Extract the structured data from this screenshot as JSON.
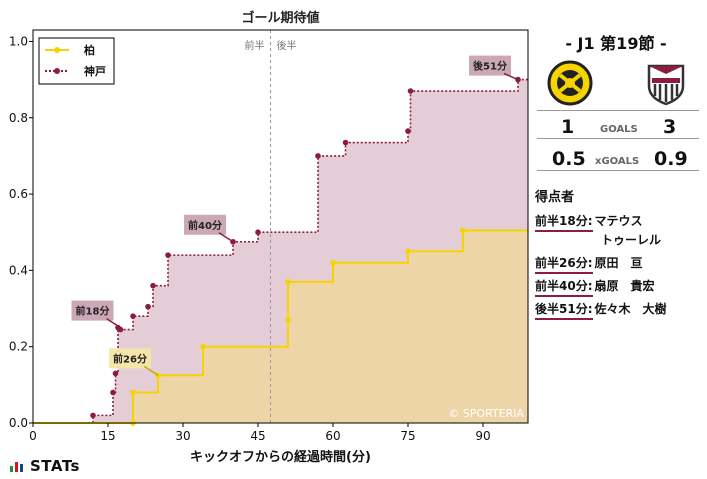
{
  "chart_data": {
    "type": "step-line",
    "title": "ゴール期待値",
    "xlabel": "キックオフからの経過時間(分)",
    "ylabel": "",
    "xlim": [
      0,
      99
    ],
    "ylim": [
      0,
      1.03
    ],
    "xticks": [
      0,
      15,
      30,
      45,
      60,
      75,
      90
    ],
    "yticks": [
      0.0,
      0.2,
      0.4,
      0.6,
      0.8,
      1.0
    ],
    "half_marker": {
      "x": 47.5,
      "left_label": "前半",
      "right_label": "後半"
    },
    "legend_position": "top-left",
    "watermark": "© SPORTERIA",
    "series": [
      {
        "name": "柏",
        "color": "#f5d400",
        "fill": "#edd5a8",
        "line_style": "solid",
        "x": [
          0,
          20,
          20,
          25,
          34,
          51,
          51,
          60,
          75,
          86,
          99
        ],
        "y": [
          0,
          0,
          0.08,
          0.125,
          0.2,
          0.27,
          0.37,
          0.42,
          0.45,
          0.505,
          0.505
        ]
      },
      {
        "name": "神戸",
        "color": "#8b1d3d",
        "fill": "#e4cdd6",
        "line_style": "dotted",
        "x": [
          0,
          12,
          16,
          16.5,
          17,
          17.5,
          20,
          23,
          24,
          27,
          40,
          45,
          57,
          62.5,
          75,
          75.5,
          97,
          99
        ],
        "y": [
          0,
          0.02,
          0.08,
          0.13,
          0.25,
          0.245,
          0.28,
          0.305,
          0.36,
          0.44,
          0.475,
          0.5,
          0.7,
          0.735,
          0.765,
          0.87,
          0.9,
          0.9
        ]
      }
    ],
    "annotations": [
      {
        "text": "前18分",
        "team": "神戸",
        "x": 17.5,
        "y": 0.25
      },
      {
        "text": "前26分",
        "team": "柏",
        "x": 25,
        "y": 0.125
      },
      {
        "text": "前40分",
        "team": "神戸",
        "x": 40,
        "y": 0.475
      },
      {
        "text": "後51分",
        "team": "神戸",
        "x": 97,
        "y": 0.9
      }
    ]
  },
  "match": {
    "title": "- J1 第19節 -",
    "home_logo": "kashiwa-reysol-crest",
    "away_logo": "vissel-kobe-crest",
    "goals": {
      "home": "1",
      "label": "GOALS",
      "away": "3"
    },
    "xgoals": {
      "home": "0.5",
      "label": "xGOALS",
      "away": "0.9"
    }
  },
  "scorers": {
    "heading": "得点者",
    "items": [
      {
        "time": "前半18分:",
        "name": "マテウス",
        "name2": "トゥーレル"
      },
      {
        "time": "前半26分:",
        "name": "原田　亘"
      },
      {
        "time": "前半40分:",
        "name": "扇原　貴宏"
      },
      {
        "time": "後半51分:",
        "name": "佐々木　大樹"
      }
    ]
  },
  "brand": {
    "label": "STATs"
  }
}
